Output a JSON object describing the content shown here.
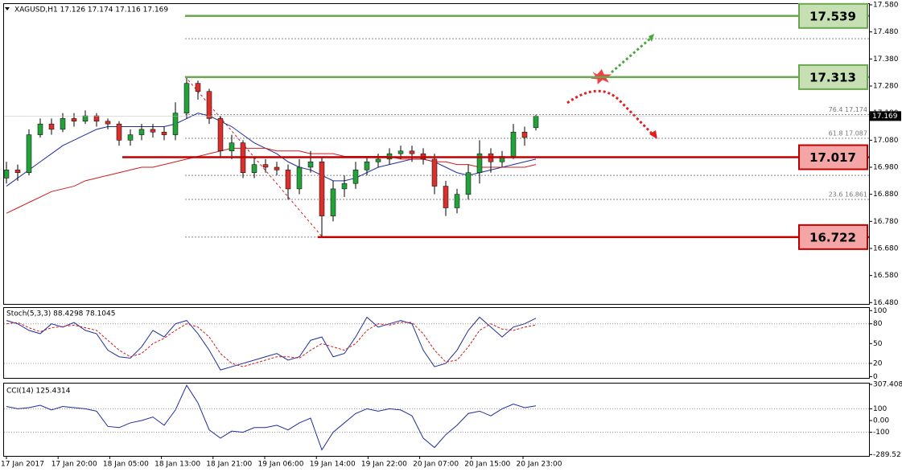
{
  "chart_data": [
    {
      "type": "candlestick",
      "title": "XAGUSD,H1  17.126 17.174 17.116 17.169",
      "open": [
        16.94,
        16.97,
        16.96,
        17.1,
        17.14,
        17.12,
        17.16,
        17.15,
        17.17,
        17.15,
        17.14,
        17.08,
        17.1,
        17.12,
        17.11,
        17.1,
        17.18,
        17.29,
        17.26,
        17.16,
        17.04,
        17.07,
        16.96,
        16.99,
        16.98,
        16.97,
        16.9,
        16.98,
        17.0,
        16.8,
        16.9,
        16.92,
        16.97,
        17.0,
        17.01,
        17.03,
        17.04,
        17.03,
        17.01,
        16.91,
        16.83,
        16.88,
        16.96,
        17.03,
        17.0,
        17.02,
        17.11,
        17.126
      ],
      "high": [
        17.0,
        16.99,
        17.12,
        17.16,
        17.16,
        17.18,
        17.18,
        17.19,
        17.18,
        17.16,
        17.15,
        17.12,
        17.14,
        17.14,
        17.13,
        17.22,
        17.313,
        17.3,
        17.27,
        17.17,
        17.1,
        17.08,
        17.02,
        17.01,
        17.0,
        16.99,
        17.01,
        17.04,
        17.02,
        16.93,
        16.95,
        17.0,
        17.02,
        17.03,
        17.05,
        17.06,
        17.06,
        17.05,
        17.03,
        16.93,
        16.9,
        16.99,
        17.08,
        17.05,
        17.04,
        17.14,
        17.13,
        17.174
      ],
      "low": [
        16.92,
        16.93,
        16.95,
        17.09,
        17.1,
        17.11,
        17.13,
        17.14,
        17.13,
        17.12,
        17.06,
        17.06,
        17.08,
        17.09,
        17.08,
        17.08,
        17.16,
        17.23,
        17.14,
        17.02,
        17.01,
        16.94,
        16.94,
        16.96,
        16.95,
        16.86,
        16.88,
        16.96,
        16.722,
        16.78,
        16.87,
        16.9,
        16.95,
        16.98,
        16.99,
        17.01,
        17.0,
        16.99,
        16.88,
        16.8,
        16.81,
        16.86,
        16.92,
        16.96,
        16.98,
        17.01,
        17.06,
        17.116
      ],
      "close": [
        16.97,
        16.96,
        17.1,
        17.14,
        17.12,
        17.16,
        17.15,
        17.17,
        17.15,
        17.14,
        17.08,
        17.1,
        17.12,
        17.11,
        17.1,
        17.18,
        17.29,
        17.26,
        17.16,
        17.04,
        17.07,
        16.96,
        16.99,
        16.98,
        16.97,
        16.9,
        16.98,
        17.0,
        16.8,
        16.9,
        16.92,
        16.97,
        17.0,
        17.01,
        17.03,
        17.04,
        17.03,
        17.01,
        16.91,
        16.83,
        16.88,
        16.96,
        17.03,
        17.0,
        17.02,
        17.11,
        17.09,
        17.169
      ],
      "up_color": "#22a33a",
      "down_color": "#d9302c",
      "series": [
        {
          "color": "#1f2d9e",
          "values": [
            16.91,
            16.94,
            16.97,
            17.0,
            17.03,
            17.06,
            17.08,
            17.1,
            17.12,
            17.13,
            17.13,
            17.13,
            17.13,
            17.13,
            17.13,
            17.14,
            17.16,
            17.18,
            17.17,
            17.15,
            17.13,
            17.1,
            17.07,
            17.05,
            17.03,
            17.0,
            16.98,
            16.97,
            16.95,
            16.93,
            16.93,
            16.94,
            16.96,
            16.98,
            16.99,
            17.0,
            17.01,
            17.01,
            17.0,
            16.98,
            16.96,
            16.95,
            16.96,
            16.97,
            16.98,
            16.99,
            17.0,
            17.01
          ]
        },
        {
          "color": "#d11a1a",
          "values": [
            16.81,
            16.83,
            16.85,
            16.87,
            16.89,
            16.9,
            16.91,
            16.93,
            16.94,
            16.95,
            16.96,
            16.97,
            16.98,
            16.98,
            16.99,
            17.0,
            17.01,
            17.02,
            17.03,
            17.04,
            17.05,
            17.05,
            17.05,
            17.05,
            17.04,
            17.04,
            17.04,
            17.03,
            17.03,
            17.03,
            17.02,
            17.02,
            17.02,
            17.02,
            17.02,
            17.01,
            17.01,
            17.01,
            17.0,
            17.0,
            16.99,
            16.99,
            16.98,
            16.98,
            16.98,
            16.98,
            16.98,
            16.99
          ]
        }
      ],
      "ylim": [
        16.475,
        17.583
      ],
      "yticks": [
        {
          "value": 17.58,
          "label": "17.580"
        },
        {
          "value": 17.48,
          "label": "17.480"
        },
        {
          "value": 17.38,
          "label": "17.380"
        },
        {
          "value": 17.28,
          "label": "17.280"
        },
        {
          "value": 17.18,
          "label": "17.180"
        },
        {
          "value": 17.08,
          "label": "17.080"
        },
        {
          "value": 16.98,
          "label": "16.980"
        },
        {
          "value": 16.88,
          "label": "16.880"
        },
        {
          "value": 16.78,
          "label": "16.780"
        },
        {
          "value": 16.68,
          "label": "16.680"
        },
        {
          "value": 16.58,
          "label": "16.580"
        },
        {
          "value": 16.48,
          "label": "16.480"
        }
      ],
      "levels": [
        {
          "value": 17.539,
          "color": "#6aa84f",
          "fill": "#c6e0b4"
        },
        {
          "value": 17.313,
          "color": "#6aa84f",
          "fill": "#c6e0b4"
        },
        {
          "value": 17.017,
          "color": "#c00000",
          "fill": "#f4a6a6"
        },
        {
          "value": 16.722,
          "color": "#c00000",
          "fill": "#f4a6a6"
        }
      ],
      "fib": [
        {
          "value": 17.174,
          "label": "76.4  17.174"
        },
        {
          "value": 17.087,
          "label": "61.8  17.087"
        },
        {
          "value": 16.861,
          "label": "23.6  16.861"
        }
      ],
      "fib_lines": [
        17.455,
        16.95,
        16.722
      ]
    },
    {
      "type": "line",
      "title": "Stoch(5,3,3) 88.4298 78.1045",
      "series": [
        {
          "color": "#1f2d9e",
          "dash": false,
          "values": [
            85,
            80,
            70,
            65,
            80,
            75,
            82,
            70,
            65,
            40,
            30,
            28,
            45,
            70,
            60,
            80,
            85,
            65,
            40,
            10,
            15,
            20,
            25,
            30,
            35,
            25,
            30,
            55,
            60,
            30,
            35,
            60,
            90,
            75,
            80,
            85,
            80,
            40,
            15,
            20,
            40,
            70,
            90,
            75,
            60,
            75,
            80,
            88.4298
          ]
        },
        {
          "color": "#d11a1a",
          "dash": true,
          "values": [
            80,
            82,
            74,
            68,
            74,
            76,
            78,
            74,
            70,
            55,
            40,
            30,
            35,
            50,
            58,
            70,
            80,
            75,
            60,
            35,
            20,
            15,
            20,
            25,
            30,
            30,
            28,
            40,
            50,
            45,
            40,
            50,
            70,
            80,
            78,
            82,
            82,
            65,
            40,
            22,
            25,
            45,
            70,
            80,
            72,
            70,
            75,
            78.1045
          ]
        }
      ],
      "ylim": [
        -2,
        104
      ],
      "yticks": [
        100,
        80,
        50,
        20,
        0
      ],
      "dotted_levels": [
        80,
        20
      ]
    },
    {
      "type": "line",
      "title": "CCI(14) 125.4314",
      "series": [
        {
          "color": "#1f2d9e",
          "dash": false,
          "values": [
            120,
            100,
            110,
            130,
            90,
            120,
            110,
            100,
            80,
            -50,
            -60,
            -20,
            0,
            30,
            -40,
            90,
            300,
            150,
            -80,
            -150,
            -90,
            -100,
            -60,
            -60,
            -40,
            -80,
            -20,
            20,
            -250,
            -100,
            -20,
            60,
            100,
            80,
            100,
            90,
            40,
            -150,
            -230,
            -120,
            -40,
            60,
            80,
            40,
            100,
            140,
            110,
            125.4314
          ]
        }
      ],
      "ylim": [
        -301,
        315
      ],
      "yticks": [
        307.4081,
        100,
        {
          "value": 0,
          "label": "0.00"
        },
        -100,
        -289.521
      ],
      "dotted_levels": [
        100,
        -100
      ]
    }
  ],
  "x_labels": [
    "17 Jan 2017",
    "17 Jan 20:00",
    "18 Jan 05:00",
    "18 Jan 13:00",
    "18 Jan 21:00",
    "19 Jan 06:00",
    "19 Jan 14:00",
    "19 Jan 22:00",
    "20 Jan 07:00",
    "20 Jan 15:00",
    "20 Jan 23:00"
  ]
}
